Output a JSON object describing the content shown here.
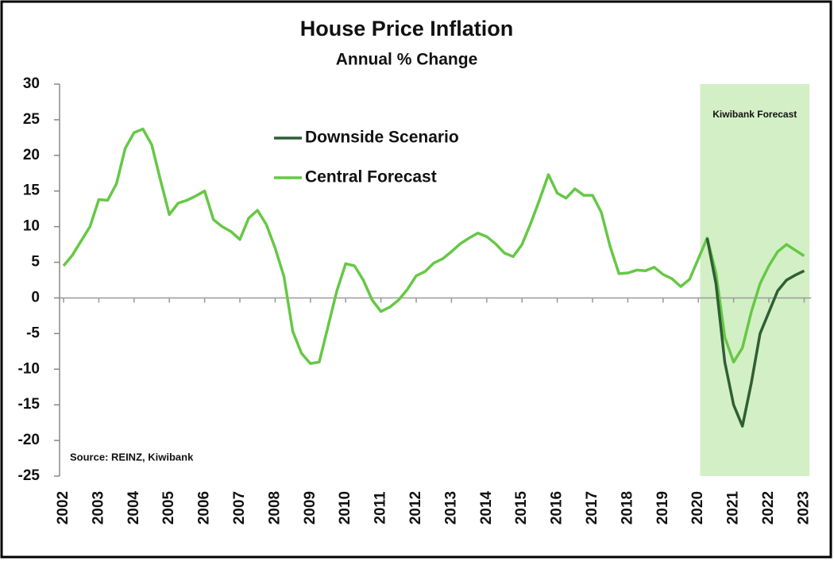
{
  "chart_data": {
    "type": "line",
    "title": "House Price Inflation",
    "subtitle": "Annual % Change",
    "source": "Source: REINZ, Kiwibank",
    "shade": {
      "label": "Kiwibank Forecast",
      "xlim": [
        2020.05,
        2023.15
      ],
      "color": "#d3efc6"
    },
    "x": [
      2002,
      2002.25,
      2002.5,
      2002.75,
      2003,
      2003.25,
      2003.5,
      2003.75,
      2004,
      2004.25,
      2004.5,
      2004.75,
      2005,
      2005.25,
      2005.5,
      2005.75,
      2006,
      2006.25,
      2006.5,
      2006.75,
      2007,
      2007.25,
      2007.5,
      2007.75,
      2008,
      2008.25,
      2008.5,
      2008.75,
      2009,
      2009.25,
      2009.5,
      2009.75,
      2010,
      2010.25,
      2010.5,
      2010.75,
      2011,
      2011.25,
      2011.5,
      2011.75,
      2012,
      2012.25,
      2012.5,
      2012.75,
      2013,
      2013.25,
      2013.5,
      2013.75,
      2014,
      2014.25,
      2014.5,
      2014.75,
      2015,
      2015.25,
      2015.5,
      2015.75,
      2016,
      2016.25,
      2016.5,
      2016.75,
      2017,
      2017.25,
      2017.5,
      2017.75,
      2018,
      2018.25,
      2018.5,
      2018.75,
      2019,
      2019.25,
      2019.5,
      2019.75,
      2020,
      2020.25,
      2020.5,
      2020.75,
      2021,
      2021.25,
      2021.5,
      2021.75,
      2022,
      2022.25,
      2022.5,
      2022.75,
      2023
    ],
    "series": [
      {
        "name": "Downside Scenario",
        "color": "#2f5f34",
        "values": [
          null,
          null,
          null,
          null,
          null,
          null,
          null,
          null,
          null,
          null,
          null,
          null,
          null,
          null,
          null,
          null,
          null,
          null,
          null,
          null,
          null,
          null,
          null,
          null,
          null,
          null,
          null,
          null,
          null,
          null,
          null,
          null,
          null,
          null,
          null,
          null,
          null,
          null,
          null,
          null,
          null,
          null,
          null,
          null,
          null,
          null,
          null,
          null,
          null,
          null,
          null,
          null,
          null,
          null,
          null,
          null,
          null,
          null,
          null,
          null,
          null,
          null,
          null,
          null,
          null,
          null,
          null,
          null,
          null,
          null,
          null,
          null,
          null,
          8.4,
          2,
          -9,
          -15,
          -18,
          -12,
          -5,
          -2,
          1,
          2.5,
          3.2,
          3.8
        ]
      },
      {
        "name": "Central Forecast",
        "color": "#66c845",
        "values": [
          4.5,
          6,
          8,
          10,
          13.8,
          13.7,
          16,
          21,
          23.2,
          23.7,
          21.5,
          16.5,
          11.7,
          13.3,
          13.7,
          14.3,
          15,
          11,
          10,
          9.3,
          8.2,
          11.2,
          12.3,
          10.3,
          7,
          3,
          -4.7,
          -7.8,
          -9.2,
          -9,
          -4,
          1,
          4.8,
          4.5,
          2.5,
          -0.3,
          -1.9,
          -1.3,
          -0.3,
          1.2,
          3.1,
          3.7,
          4.9,
          5.5,
          6.5,
          7.6,
          8.4,
          9.1,
          8.6,
          7.6,
          6.3,
          5.8,
          7.5,
          10.5,
          13.8,
          17.3,
          14.7,
          14,
          15.3,
          14.4,
          14.4,
          12,
          7.2,
          3.4,
          3.5,
          3.9,
          3.8,
          4.3,
          3.3,
          2.7,
          1.6,
          2.6,
          5.5,
          8.4,
          3.5,
          -5.5,
          -9,
          -7,
          -2,
          2,
          4.5,
          6.5,
          7.5,
          6.7,
          5.9
        ]
      }
    ],
    "xlim": [
      2001.95,
      2023.2
    ],
    "xticks": [
      2002,
      2003,
      2004,
      2005,
      2006,
      2007,
      2008,
      2009,
      2010,
      2011,
      2012,
      2013,
      2014,
      2015,
      2016,
      2017,
      2018,
      2019,
      2020,
      2021,
      2022,
      2023
    ],
    "ylim": [
      -25,
      30
    ],
    "yticks": [
      -25,
      -20,
      -15,
      -10,
      -5,
      0,
      5,
      10,
      15,
      20,
      25,
      30
    ]
  }
}
